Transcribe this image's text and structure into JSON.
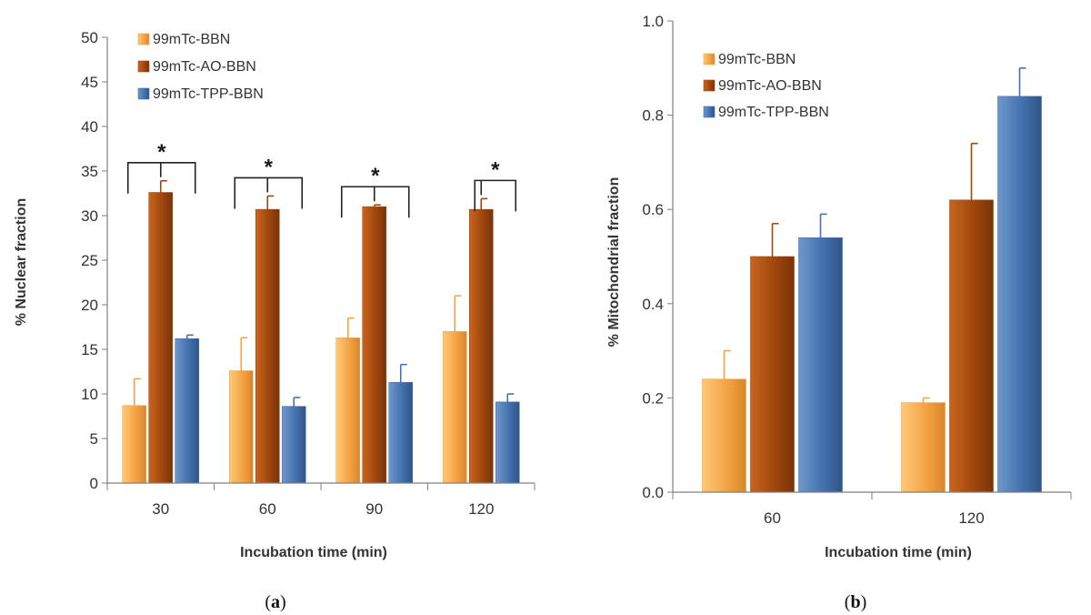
{
  "colors": {
    "bbn": "#F4A445",
    "ao_bbn": "#A0470E",
    "tpp_bbn": "#4472AE",
    "axis": "#808080",
    "grid": "#D9D9D9"
  },
  "legend": [
    "99mTc-BBN",
    "99mTc-AO-BBN",
    "99mTc-TPP-BBN"
  ],
  "chart_data": [
    {
      "panel": "(a)",
      "panel_letter": "a",
      "type": "bar",
      "categories": [
        "30",
        "60",
        "90",
        "120"
      ],
      "series": [
        {
          "name": "99mTc-BBN",
          "values": [
            8.7,
            12.6,
            16.3,
            17.0
          ],
          "errors": [
            3.0,
            3.7,
            2.2,
            4.0
          ]
        },
        {
          "name": "99mTc-AO-BBN",
          "values": [
            32.6,
            30.7,
            31.0,
            30.7
          ],
          "errors": [
            1.3,
            1.5,
            0.2,
            1.2
          ]
        },
        {
          "name": "99mTc-TPP-BBN",
          "values": [
            16.2,
            8.6,
            11.3,
            9.1
          ],
          "errors": [
            0.4,
            1.0,
            2.0,
            0.9
          ]
        }
      ],
      "significance": [
        {
          "category": "30",
          "label": "*",
          "from_series": 0,
          "to_series": 2
        },
        {
          "category": "60",
          "label": "*",
          "from_series": 0,
          "to_series": 2
        },
        {
          "category": "90",
          "label": "*",
          "from_series": 0,
          "to_series": 2
        },
        {
          "category": "120",
          "label": "*",
          "from_series": 1,
          "to_series": 2
        }
      ],
      "xlabel": "Incubation time (min)",
      "ylabel": "% Nuclear fraction",
      "ylim": [
        0,
        50
      ],
      "yticks": [
        "0",
        "5",
        "10",
        "15",
        "20",
        "25",
        "30",
        "35",
        "40",
        "45",
        "50"
      ],
      "legend_position": "top-left",
      "grid": false
    },
    {
      "panel": "(b)",
      "panel_letter": "b",
      "type": "bar",
      "categories": [
        "60",
        "120"
      ],
      "series": [
        {
          "name": "99mTc-BBN",
          "values": [
            0.24,
            0.19
          ],
          "errors": [
            0.06,
            0.01
          ]
        },
        {
          "name": "99mTc-AO-BBN",
          "values": [
            0.5,
            0.62
          ],
          "errors": [
            0.07,
            0.12
          ]
        },
        {
          "name": "99mTc-TPP-BBN",
          "values": [
            0.54,
            0.84
          ],
          "errors": [
            0.05,
            0.06
          ]
        }
      ],
      "xlabel": "Incubation time (min)",
      "ylabel": "% Mitochondrial fraction",
      "ylim": [
        0,
        1.0
      ],
      "yticks": [
        "0.0",
        "0.2",
        "0.4",
        "0.6",
        "0.8",
        "1.0"
      ],
      "legend_position": "top-left",
      "grid": false
    }
  ]
}
